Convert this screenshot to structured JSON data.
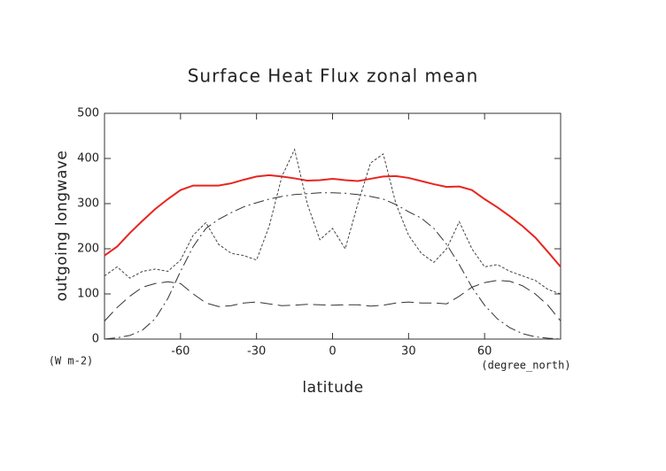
{
  "chart_data": {
    "type": "line",
    "title": "Surface Heat Flux zonal mean",
    "y_label": "outgoing longwave",
    "x_label": "latitude",
    "y_unit": "(W m-2)",
    "x_unit": "(degree_north)",
    "x": [
      -90,
      -85,
      -80,
      -75,
      -70,
      -65,
      -60,
      -55,
      -50,
      -45,
      -40,
      -35,
      -30,
      -25,
      -20,
      -15,
      -10,
      -5,
      0,
      5,
      10,
      15,
      20,
      25,
      30,
      35,
      40,
      45,
      50,
      55,
      60,
      65,
      70,
      75,
      80,
      85,
      90
    ],
    "xlim": [
      -90,
      90
    ],
    "xticks": [
      -60,
      -30,
      0,
      30,
      60
    ],
    "ylim": [
      0,
      500
    ],
    "yticks": [
      0,
      100,
      200,
      300,
      400,
      500
    ],
    "series": [
      {
        "color": "#e8251f",
        "line_style": "solid",
        "values": [
          185,
          205,
          235,
          262,
          288,
          310,
          330,
          340,
          340,
          340,
          345,
          353,
          360,
          363,
          360,
          356,
          351,
          352,
          355,
          352,
          350,
          355,
          360,
          361,
          357,
          350,
          343,
          337,
          338,
          330,
          310,
          292,
          272,
          250,
          225,
          193,
          160
        ]
      },
      {
        "color": "#333333",
        "line_style": "dash-dot",
        "values": [
          0,
          3,
          8,
          20,
          45,
          90,
          150,
          205,
          245,
          265,
          280,
          293,
          302,
          310,
          316,
          320,
          322,
          324,
          324,
          323,
          320,
          316,
          310,
          298,
          282,
          268,
          245,
          210,
          165,
          115,
          75,
          45,
          25,
          12,
          5,
          2,
          0
        ]
      },
      {
        "color": "#333333",
        "line_style": "long-dash",
        "values": [
          40,
          70,
          95,
          115,
          123,
          127,
          123,
          100,
          80,
          72,
          74,
          80,
          82,
          78,
          74,
          75,
          77,
          76,
          75,
          76,
          76,
          73,
          75,
          80,
          82,
          80,
          80,
          78,
          95,
          115,
          125,
          130,
          128,
          118,
          100,
          75,
          40
        ]
      },
      {
        "color": "#444444",
        "line_style": "dotted",
        "values": [
          140,
          160,
          135,
          150,
          155,
          150,
          175,
          230,
          258,
          210,
          190,
          185,
          175,
          250,
          360,
          420,
          300,
          220,
          245,
          200,
          300,
          390,
          410,
          300,
          230,
          190,
          170,
          200,
          260,
          200,
          160,
          165,
          150,
          140,
          130,
          110,
          100
        ]
      }
    ]
  }
}
